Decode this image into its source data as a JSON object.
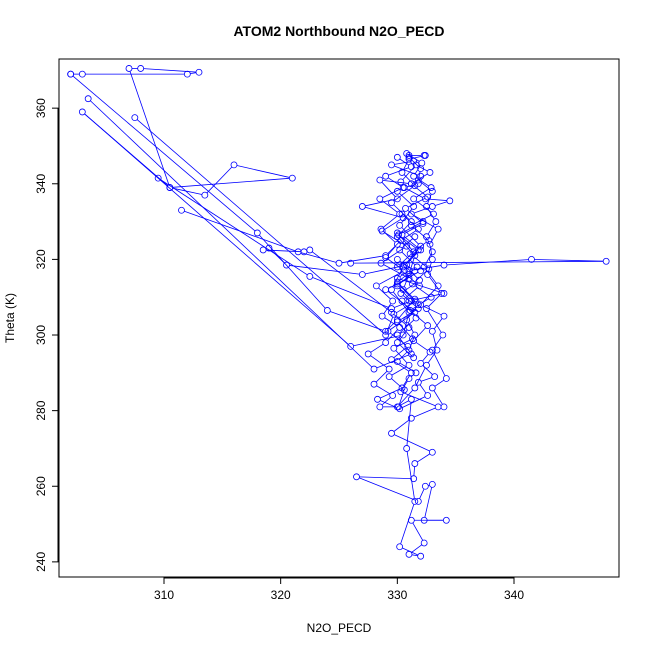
{
  "chart_data": {
    "type": "line",
    "title": "ATOM2 Northbound N2O_PECD",
    "xlabel": "N2O_PECD",
    "ylabel": "Theta (K)",
    "xlim": [
      301,
      349
    ],
    "ylim": [
      236,
      373
    ],
    "xticks": [
      310,
      320,
      330,
      340
    ],
    "yticks": [
      240,
      260,
      280,
      300,
      320,
      340,
      360
    ],
    "grid": false,
    "marker": "open-circle",
    "colors": {
      "series": "#0000ff",
      "axis": "#000000",
      "background": "#ffffff"
    },
    "series": [
      {
        "points": [
          [
            332.4,
            347.5
          ],
          [
            331.0,
            346.5
          ],
          [
            330.4,
            343.0
          ],
          [
            331.5,
            339.5
          ],
          [
            329.5,
            335.0
          ],
          [
            331.2,
            330.0
          ],
          [
            330.0,
            326.0
          ],
          [
            331.5,
            321.0
          ],
          [
            331.0,
            316.0
          ],
          [
            330.5,
            312.0
          ],
          [
            331.8,
            308.0
          ],
          [
            330.8,
            304.0
          ],
          [
            331.5,
            300.0
          ],
          [
            331.0,
            296.0
          ],
          [
            330.0,
            293.0
          ],
          [
            331.6,
            290.0
          ],
          [
            331.0,
            288.5
          ],
          [
            330.3,
            285.0
          ],
          [
            333.5,
            281.0
          ],
          [
            331.2,
            278.0
          ],
          [
            329.5,
            274.0
          ],
          [
            333.0,
            269.0
          ],
          [
            331.5,
            266.0
          ],
          [
            331.4,
            262.0
          ],
          [
            326.5,
            262.5
          ],
          [
            331.8,
            256.0
          ],
          [
            332.4,
            260.0
          ],
          [
            333.0,
            260.5
          ],
          [
            332.3,
            251.0
          ],
          [
            334.2,
            251.0
          ],
          [
            331.2,
            251.0
          ],
          [
            332.3,
            245.0
          ],
          [
            331.0,
            242.0
          ],
          [
            332.0,
            241.5
          ],
          [
            330.2,
            244.0
          ],
          [
            331.5,
            256.0
          ],
          [
            330.8,
            270.0
          ],
          [
            331.2,
            283.0
          ],
          [
            330.0,
            281.0
          ],
          [
            331.5,
            286.0
          ],
          [
            332.5,
            292.0
          ],
          [
            333.4,
            296.0
          ],
          [
            333.0,
            301.0
          ],
          [
            334.0,
            305.0
          ],
          [
            332.0,
            308.0
          ],
          [
            333.5,
            313.0
          ],
          [
            332.3,
            318.0
          ],
          [
            333.0,
            322.0
          ],
          [
            332.5,
            326.0
          ],
          [
            333.3,
            330.0
          ],
          [
            332.5,
            334.0
          ],
          [
            333.0,
            338.0
          ],
          [
            331.8,
            341.0
          ],
          [
            332.0,
            344.0
          ],
          [
            331.0,
            347.0
          ]
        ]
      },
      {
        "points": [
          [
            330.0,
            347.0
          ],
          [
            331.2,
            344.5
          ],
          [
            329.0,
            342.0
          ],
          [
            330.5,
            339.0
          ],
          [
            328.5,
            336.0
          ],
          [
            330.2,
            332.0
          ],
          [
            328.6,
            328.0
          ],
          [
            330.0,
            324.0
          ],
          [
            329.0,
            320.5
          ],
          [
            330.6,
            317.0
          ],
          [
            328.2,
            313.0
          ],
          [
            329.6,
            309.0
          ],
          [
            328.7,
            305.0
          ],
          [
            330.2,
            302.0
          ],
          [
            329.0,
            298.0
          ],
          [
            327.5,
            295.0
          ],
          [
            329.3,
            291.0
          ],
          [
            328.0,
            287.0
          ],
          [
            329.6,
            284.0
          ],
          [
            328.5,
            281.0
          ],
          [
            330.1,
            281.0
          ],
          [
            330.6,
            285.5
          ],
          [
            329.3,
            289.0
          ],
          [
            331.0,
            292.0
          ],
          [
            329.7,
            296.5
          ],
          [
            331.3,
            299.0
          ],
          [
            330.0,
            303.5
          ],
          [
            331.8,
            307.0
          ],
          [
            330.3,
            311.0
          ],
          [
            331.9,
            314.5
          ],
          [
            330.6,
            318.5
          ],
          [
            332.0,
            322.5
          ],
          [
            330.4,
            326.5
          ],
          [
            332.2,
            329.5
          ],
          [
            330.7,
            333.5
          ],
          [
            332.6,
            336.5
          ],
          [
            331.2,
            340.0
          ],
          [
            332.8,
            343.0
          ],
          [
            331.6,
            345.0
          ],
          [
            330.3,
            340.5
          ]
        ]
      },
      {
        "points": [
          [
            331.2,
            340.0
          ],
          [
            328.5,
            341.0
          ],
          [
            330.0,
            336.0
          ],
          [
            327.0,
            334.0
          ],
          [
            330.5,
            331.0
          ],
          [
            328.7,
            327.5
          ],
          [
            330.8,
            323.5
          ],
          [
            328.6,
            319.0
          ],
          [
            331.0,
            315.0
          ],
          [
            329.0,
            312.0
          ],
          [
            331.5,
            306.0
          ],
          [
            329.2,
            301.0
          ],
          [
            330.9,
            297.0
          ],
          [
            329.5,
            293.5
          ],
          [
            331.2,
            290.0
          ],
          [
            330.4,
            286.0
          ],
          [
            328.3,
            283.0
          ],
          [
            330.2,
            280.5
          ],
          [
            332.6,
            284.0
          ],
          [
            331.8,
            287.5
          ],
          [
            333.2,
            289.0
          ],
          [
            332.0,
            292.5
          ],
          [
            332.8,
            295.5
          ],
          [
            331.4,
            298.5
          ],
          [
            332.6,
            302.5
          ],
          [
            331.1,
            306.5
          ],
          [
            332.9,
            310.0
          ],
          [
            331.3,
            313.5
          ],
          [
            332.7,
            317.5
          ],
          [
            331.1,
            321.5
          ],
          [
            332.7,
            325.0
          ],
          [
            331.2,
            329.0
          ],
          [
            333.1,
            332.0
          ],
          [
            331.4,
            336.0
          ],
          [
            332.9,
            339.0
          ],
          [
            331.4,
            342.0
          ],
          [
            332.1,
            345.5
          ],
          [
            330.8,
            348.0
          ]
        ]
      },
      {
        "points": [
          [
            302.0,
            369.0
          ],
          [
            303.0,
            369.0
          ],
          [
            312.0,
            369.0
          ],
          [
            313.0,
            369.5
          ],
          [
            308.0,
            370.5
          ],
          [
            307.0,
            370.5
          ],
          [
            310.5,
            339.0
          ],
          [
            313.5,
            337.0
          ],
          [
            316.0,
            345.0
          ],
          [
            321.0,
            341.5
          ],
          [
            310.5,
            339.0
          ],
          [
            303.0,
            359.0
          ],
          [
            326.0,
            297.0
          ],
          [
            330.5,
            300.0
          ],
          [
            331.0,
            306.0
          ],
          [
            329.5,
            312.0
          ],
          [
            330.5,
            318.0
          ],
          [
            332.0,
            323.5
          ],
          [
            330.2,
            329.0
          ],
          [
            331.4,
            334.0
          ],
          [
            330.0,
            338.0
          ]
        ]
      },
      {
        "points": [
          [
            303.5,
            362.5
          ],
          [
            328.0,
            291.0
          ],
          [
            331.2,
            295.0
          ],
          [
            330.0,
            300.0
          ],
          [
            331.6,
            304.5
          ],
          [
            330.4,
            309.0
          ],
          [
            331.9,
            313.0
          ],
          [
            330.0,
            318.0
          ],
          [
            331.4,
            322.0
          ],
          [
            330.0,
            327.0
          ]
        ]
      },
      {
        "points": [
          [
            307.5,
            357.5
          ],
          [
            329.0,
            300.0
          ],
          [
            329.7,
            305.5
          ],
          [
            331.6,
            309.0
          ],
          [
            330.0,
            314.0
          ],
          [
            331.7,
            318.0
          ],
          [
            330.2,
            322.5
          ],
          [
            331.5,
            326.0
          ]
        ]
      },
      {
        "points": [
          [
            302.0,
            369.0
          ],
          [
            318.0,
            327.0
          ],
          [
            324.0,
            306.5
          ],
          [
            329.0,
            301.0
          ],
          [
            330.0,
            304.0
          ],
          [
            331.5,
            309.5
          ],
          [
            330.0,
            313.5
          ],
          [
            332.0,
            317.0
          ]
        ]
      },
      {
        "points": [
          [
            309.5,
            341.5
          ],
          [
            322.5,
            315.5
          ],
          [
            329.5,
            307.0
          ],
          [
            331.2,
            309.0
          ],
          [
            330.0,
            313.0
          ],
          [
            331.5,
            317.0
          ],
          [
            330.0,
            320.0
          ]
        ]
      },
      {
        "points": [
          [
            311.5,
            333.0
          ],
          [
            321.5,
            322.0
          ],
          [
            325.0,
            319.0
          ],
          [
            329.0,
            321.0
          ],
          [
            330.3,
            325.0
          ],
          [
            331.8,
            328.0
          ],
          [
            330.4,
            332.0
          ]
        ]
      },
      {
        "points": [
          [
            319.0,
            323.0
          ],
          [
            320.5,
            318.5
          ],
          [
            327.0,
            316.0
          ],
          [
            330.8,
            318.5
          ],
          [
            331.8,
            322.5
          ],
          [
            330.1,
            326.5
          ],
          [
            332.2,
            330.0
          ]
        ]
      },
      {
        "points": [
          [
            318.5,
            322.5
          ],
          [
            322.0,
            322.0
          ],
          [
            322.5,
            322.5
          ],
          [
            329.5,
            306.0
          ],
          [
            331.0,
            302.0
          ],
          [
            330.0,
            298.0
          ],
          [
            331.4,
            294.0
          ]
        ]
      },
      {
        "points": [
          [
            326.0,
            319.0
          ],
          [
            347.9,
            319.5
          ],
          [
            341.5,
            320.0
          ],
          [
            334.0,
            318.5
          ],
          [
            331.0,
            317.0
          ],
          [
            330.0,
            315.0
          ],
          [
            334.0,
            311.0
          ],
          [
            331.0,
            309.0
          ]
        ]
      },
      {
        "points": [
          [
            332.3,
            347.5
          ],
          [
            331.0,
            347.5
          ],
          [
            331.4,
            346.0
          ],
          [
            329.5,
            345.0
          ],
          [
            332.0,
            342.0
          ],
          [
            331.8,
            340.0
          ],
          [
            330.6,
            339.0
          ],
          [
            332.4,
            336.0
          ],
          [
            334.5,
            335.5
          ],
          [
            333.0,
            334.0
          ],
          [
            331.2,
            332.0
          ],
          [
            333.5,
            328.0
          ],
          [
            332.8,
            324.0
          ],
          [
            333.0,
            320.0
          ],
          [
            332.6,
            316.0
          ],
          [
            333.8,
            311.0
          ],
          [
            332.5,
            307.0
          ],
          [
            333.9,
            300.0
          ],
          [
            333.0,
            296.0
          ],
          [
            334.2,
            288.5
          ],
          [
            333.0,
            286.0
          ],
          [
            334.0,
            281.0
          ]
        ]
      }
    ]
  }
}
